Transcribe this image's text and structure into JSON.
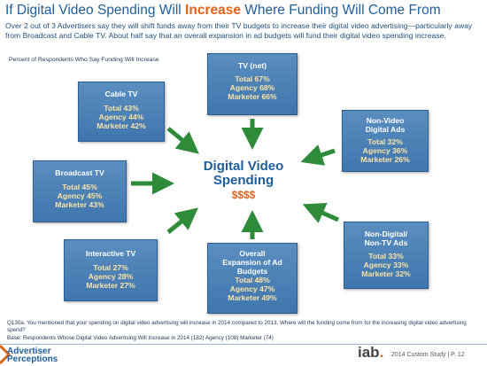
{
  "title": {
    "before": "If Digital Video Spending Will ",
    "highlight": "Increase",
    "after": " Where Funding Will Come From"
  },
  "subtitle": "Over 2 out of 3 Advertisers say they will shift funds away from their TV budgets to increase their digital video advertising—particularly away from Broadcast and Cable TV.  About half say that an overall expansion in ad budgets will fund their digital video spending increase.",
  "chart_label": "Percent of Respondents Who Say Funding Will Increase",
  "center": {
    "line1": "Digital Video",
    "line2": "Spending",
    "money": "$$$$"
  },
  "colors": {
    "title": "#1f5e9a",
    "highlight": "#e0631c",
    "box": "#4a80b7",
    "stat": "#fbe3a6",
    "arrow": "#2e8b3a"
  },
  "sources": [
    {
      "id": "tv-net",
      "title": [
        "TV (net)"
      ],
      "total": "Total 67%",
      "agency": "Agency 68%",
      "marketer": "Marketer 66%"
    },
    {
      "id": "cable-tv",
      "title": [
        "Cable TV"
      ],
      "total": "Total  43%",
      "agency": "Agency 44%",
      "marketer": "Marketer 42%"
    },
    {
      "id": "non-video-digital",
      "title": [
        "Non-Video",
        "Digital Ads"
      ],
      "total": "Total 32%",
      "agency": "Agency 36%",
      "marketer": "Marketer 26%"
    },
    {
      "id": "broadcast-tv",
      "title": [
        "Broadcast TV"
      ],
      "total": "Total 45%",
      "agency": "Agency 45%",
      "marketer": "Marketer 43%"
    },
    {
      "id": "non-digital-non-tv",
      "title": [
        "Non-Digital/",
        "Non-TV Ads"
      ],
      "total": "Total 33%",
      "agency": "Agency 33%",
      "marketer": "Marketer 32%"
    },
    {
      "id": "interactive-tv",
      "title": [
        "Interactive TV"
      ],
      "total": "Total 27%",
      "agency": "Agency 28%",
      "marketer": "Marketer 27%"
    },
    {
      "id": "overall-expansion",
      "title": [
        "Overall",
        "Expansion of Ad",
        "Budgets"
      ],
      "total": "Total 48%",
      "agency": "Agency 47%",
      "marketer": "Marketer 49%"
    }
  ],
  "question": "Q130a. You mentioned that your spending on digital video advertising will increase in 2014 compared to 2013. Where will the funding come from for the increasing digital video advertising spend?",
  "base": "Base: Respondents Whose Digital Video Advertising Will Increase in 2014 (182)  Agency (108) Marketer (74)",
  "footer": {
    "logo_line1": "Advertiser",
    "logo_line2": "Perceptions",
    "iab": "iab",
    "study": "2014 Custom Study  |  P.  12"
  }
}
